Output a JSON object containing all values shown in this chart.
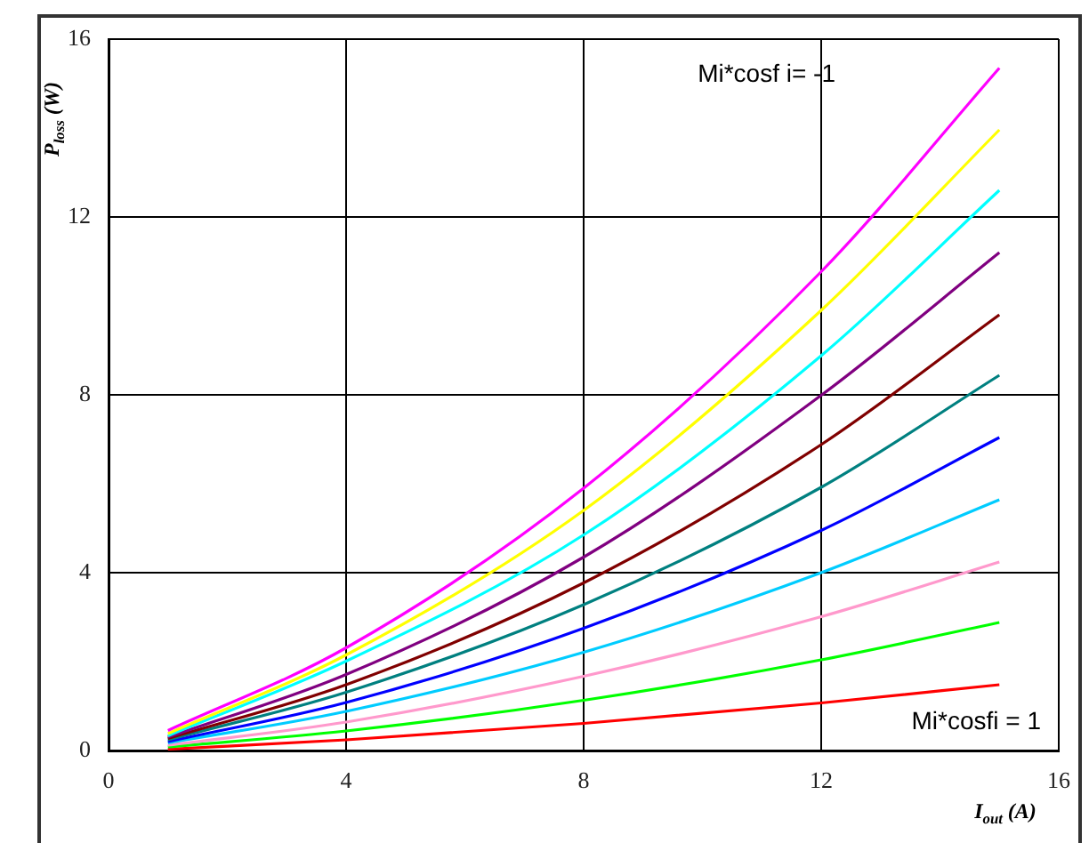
{
  "chart_data": {
    "type": "line",
    "xlabel": "I$_{out}$ (A)",
    "ylabel": "P$_{loss}$ (W)",
    "x": [
      1,
      4,
      8,
      12,
      15
    ],
    "series": [
      {
        "color": "#ff00ff",
        "values": [
          0.45,
          2.31,
          5.9,
          10.77,
          15.35
        ]
      },
      {
        "color": "#ffff00",
        "values": [
          0.38,
          2.15,
          5.4,
          9.9,
          13.96
        ]
      },
      {
        "color": "#00ffff",
        "values": [
          0.33,
          2.01,
          4.85,
          8.88,
          12.6
        ]
      },
      {
        "color": "#800080",
        "values": [
          0.3,
          1.71,
          4.35,
          7.99,
          11.2
        ]
      },
      {
        "color": "#800000",
        "values": [
          0.27,
          1.48,
          3.77,
          6.88,
          9.8
        ]
      },
      {
        "color": "#008080",
        "values": [
          0.24,
          1.31,
          3.28,
          5.92,
          8.44
        ]
      },
      {
        "color": "#0000ff",
        "values": [
          0.2,
          1.08,
          2.75,
          4.95,
          7.04
        ]
      },
      {
        "color": "#00ccff",
        "values": [
          0.17,
          0.88,
          2.21,
          4.0,
          5.64
        ]
      },
      {
        "color": "#ff99cc",
        "values": [
          0.12,
          0.64,
          1.67,
          3.01,
          4.24
        ]
      },
      {
        "color": "#00ff00",
        "values": [
          0.08,
          0.44,
          1.13,
          2.04,
          2.88
        ]
      },
      {
        "color": "#ff0000",
        "values": [
          0.03,
          0.24,
          0.61,
          1.07,
          1.48
        ]
      }
    ],
    "xlim": [
      0,
      16
    ],
    "xticks": [
      0,
      4,
      8,
      12,
      16
    ],
    "ylim": [
      0,
      16
    ],
    "yticks": [
      0,
      4,
      8,
      12,
      16
    ],
    "grid": true,
    "legend": false,
    "marker": "none",
    "line_style": "solid",
    "annotations": [
      "Mi*cosf i= -1",
      "Mi*cosfi = 1"
    ]
  }
}
